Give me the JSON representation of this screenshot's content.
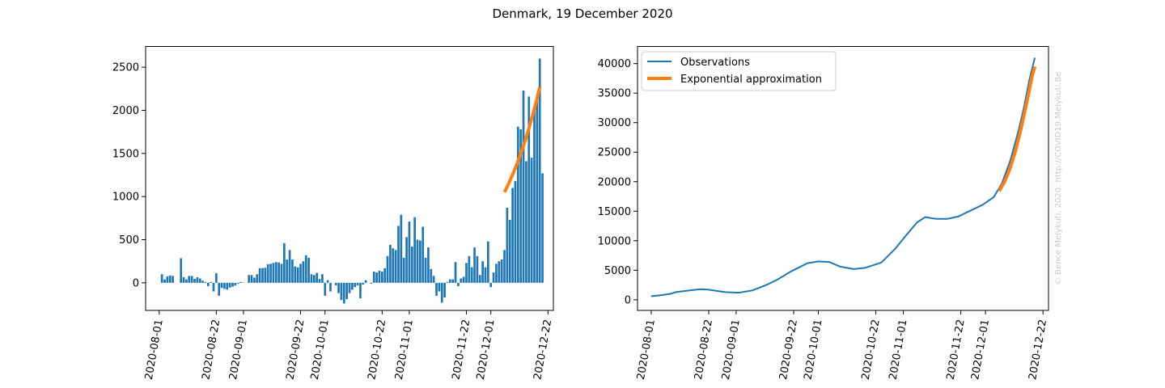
{
  "figure": {
    "title": "Denmark, 19 December 2020",
    "watermark": "© Bence Melykuti, 2020. http://COVID19.Melykuti.Be"
  },
  "colors": {
    "bars": "#1f77b4",
    "observations": "#1f77b4",
    "approximation": "#ff7f0e",
    "axis": "#000000"
  },
  "chart_data": [
    {
      "type": "bar",
      "x_type": "date",
      "xlim": [
        "2020-07-27",
        "2020-12-24"
      ],
      "ylim": [
        -320,
        2740
      ],
      "x_ticks": [
        "2020-08-01",
        "2020-08-22",
        "2020-09-01",
        "2020-09-22",
        "2020-10-01",
        "2020-10-22",
        "2020-11-01",
        "2020-11-22",
        "2020-12-01",
        "2020-12-22"
      ],
      "y_ticks": [
        0,
        500,
        1000,
        1500,
        2000,
        2500
      ],
      "start_date": "2020-08-02",
      "values": [
        100,
        40,
        75,
        85,
        80,
        0,
        0,
        285,
        65,
        40,
        80,
        80,
        45,
        65,
        50,
        25,
        10,
        -40,
        10,
        -100,
        110,
        -150,
        -60,
        -70,
        -80,
        -55,
        -45,
        -30,
        -10,
        10,
        5,
        0,
        90,
        90,
        60,
        100,
        170,
        170,
        175,
        215,
        220,
        230,
        240,
        235,
        220,
        460,
        270,
        380,
        270,
        190,
        180,
        220,
        250,
        320,
        290,
        100,
        90,
        115,
        45,
        100,
        -150,
        30,
        -100,
        0,
        -30,
        -120,
        -200,
        -240,
        -190,
        -120,
        -80,
        -50,
        -30,
        -180,
        -20,
        30,
        0,
        -10,
        130,
        120,
        140,
        130,
        170,
        310,
        440,
        400,
        380,
        660,
        790,
        290,
        530,
        710,
        420,
        760,
        500,
        490,
        650,
        290,
        410,
        160,
        80,
        -150,
        -100,
        -230,
        -170,
        10,
        40,
        40,
        240,
        -40,
        50,
        70,
        230,
        310,
        180,
        410,
        310,
        90,
        250,
        180,
        480,
        -50,
        120,
        220,
        250,
        270,
        380,
        870,
        730,
        1100,
        1180,
        1810,
        1780,
        2230,
        1410,
        2160,
        1450,
        2030,
        2150,
        2600,
        1270
      ],
      "fit": {
        "start_date": "2020-12-06",
        "end_date": "2020-12-19",
        "start_value": 1050,
        "end_value": 2270
      }
    },
    {
      "type": "line",
      "x_type": "date",
      "xlim": [
        "2020-07-27",
        "2020-12-24"
      ],
      "ylim": [
        -1800,
        42900
      ],
      "x_ticks": [
        "2020-08-01",
        "2020-08-22",
        "2020-09-01",
        "2020-09-22",
        "2020-10-01",
        "2020-10-22",
        "2020-11-01",
        "2020-11-22",
        "2020-12-01",
        "2020-12-22"
      ],
      "y_ticks": [
        0,
        5000,
        10000,
        15000,
        20000,
        25000,
        30000,
        35000,
        40000
      ],
      "legend": {
        "location": "upper left",
        "entries": [
          "Observations",
          "Exponential approximation"
        ]
      },
      "series": [
        {
          "name": "Observations",
          "points": [
            [
              "2020-08-01",
              600
            ],
            [
              "2020-08-05",
              800
            ],
            [
              "2020-08-08",
              1000
            ],
            [
              "2020-08-10",
              1300
            ],
            [
              "2020-08-15",
              1600
            ],
            [
              "2020-08-19",
              1800
            ],
            [
              "2020-08-22",
              1700
            ],
            [
              "2020-08-28",
              1300
            ],
            [
              "2020-09-02",
              1200
            ],
            [
              "2020-09-07",
              1600
            ],
            [
              "2020-09-12",
              2500
            ],
            [
              "2020-09-16",
              3400
            ],
            [
              "2020-09-21",
              4800
            ],
            [
              "2020-09-27",
              6200
            ],
            [
              "2020-10-01",
              6500
            ],
            [
              "2020-10-05",
              6400
            ],
            [
              "2020-10-09",
              5600
            ],
            [
              "2020-10-14",
              5200
            ],
            [
              "2020-10-18",
              5400
            ],
            [
              "2020-10-24",
              6300
            ],
            [
              "2020-10-29",
              8600
            ],
            [
              "2020-11-02",
              10900
            ],
            [
              "2020-11-06",
              13100
            ],
            [
              "2020-11-09",
              14000
            ],
            [
              "2020-11-13",
              13700
            ],
            [
              "2020-11-17",
              13700
            ],
            [
              "2020-11-21",
              14100
            ],
            [
              "2020-11-26",
              15200
            ],
            [
              "2020-11-30",
              16100
            ],
            [
              "2020-12-04",
              17400
            ],
            [
              "2020-12-07",
              19700
            ],
            [
              "2020-12-10",
              23500
            ],
            [
              "2020-12-13",
              28500
            ],
            [
              "2020-12-15",
              32500
            ],
            [
              "2020-12-17",
              37200
            ],
            [
              "2020-12-19",
              41000
            ]
          ]
        },
        {
          "name": "Exponential approximation",
          "points": [
            [
              "2020-12-06",
              18400
            ],
            [
              "2020-12-08",
              20000
            ],
            [
              "2020-12-10",
              22300
            ],
            [
              "2020-12-12",
              25300
            ],
            [
              "2020-12-14",
              29000
            ],
            [
              "2020-12-16",
              33300
            ],
            [
              "2020-12-18",
              37800
            ],
            [
              "2020-12-19",
              39500
            ]
          ]
        }
      ]
    }
  ]
}
